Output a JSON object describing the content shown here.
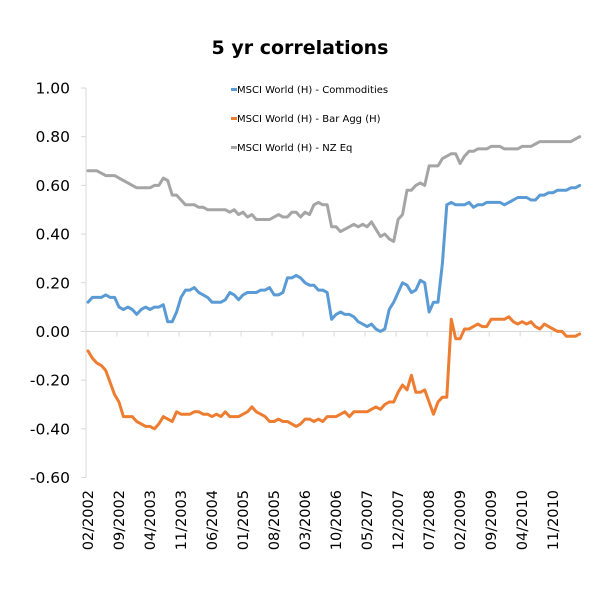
{
  "chart_data": {
    "type": "line",
    "title": "5 yr correlations",
    "xlabel": "",
    "ylabel": "",
    "ylim": [
      -0.6,
      1.0
    ],
    "y_ticks": [
      "1.00",
      "0.80",
      "0.60",
      "0.40",
      "0.20",
      "0.00",
      "-0.20",
      "-0.40",
      "-0.60"
    ],
    "y_tick_values": [
      1.0,
      0.8,
      0.6,
      0.4,
      0.2,
      0.0,
      -0.2,
      -0.4,
      -0.6
    ],
    "x_start": "02/2002",
    "x_end": "05/2011",
    "x_frequency": "monthly",
    "x_tick_labels": [
      "02/2002",
      "09/2002",
      "04/2003",
      "11/2003",
      "06/2004",
      "01/2005",
      "08/2005",
      "03/2006",
      "10/2006",
      "05/2007",
      "12/2007",
      "07/2008",
      "02/2009",
      "09/2009",
      "04/2010",
      "11/2010"
    ],
    "x_tick_interval_months": 7,
    "grid": false,
    "legend_position": "top",
    "series": [
      {
        "name": "MSCI World (H) - Commodities",
        "color": "#5B9BD5",
        "values": [
          0.12,
          0.14,
          0.14,
          0.14,
          0.15,
          0.14,
          0.14,
          0.1,
          0.09,
          0.1,
          0.09,
          0.07,
          0.09,
          0.1,
          0.09,
          0.1,
          0.1,
          0.11,
          0.04,
          0.04,
          0.08,
          0.14,
          0.17,
          0.17,
          0.18,
          0.16,
          0.15,
          0.14,
          0.12,
          0.12,
          0.12,
          0.13,
          0.16,
          0.15,
          0.13,
          0.15,
          0.16,
          0.16,
          0.16,
          0.17,
          0.17,
          0.18,
          0.15,
          0.15,
          0.16,
          0.22,
          0.22,
          0.23,
          0.22,
          0.2,
          0.19,
          0.19,
          0.17,
          0.17,
          0.16,
          0.05,
          0.07,
          0.08,
          0.07,
          0.07,
          0.06,
          0.04,
          0.03,
          0.02,
          0.03,
          0.01,
          0.0,
          0.01,
          0.09,
          0.12,
          0.16,
          0.2,
          0.19,
          0.16,
          0.17,
          0.21,
          0.2,
          0.08,
          0.12,
          0.12,
          0.28,
          0.52,
          0.53,
          0.52,
          0.52,
          0.52,
          0.53,
          0.51,
          0.52,
          0.52,
          0.53,
          0.53,
          0.53,
          0.53,
          0.52,
          0.53,
          0.54,
          0.55,
          0.55,
          0.55,
          0.54,
          0.54,
          0.56,
          0.56,
          0.57,
          0.57,
          0.58,
          0.58,
          0.58,
          0.59,
          0.59,
          0.6
        ]
      },
      {
        "name": "MSCI World (H) - Bar Agg (H)",
        "color": "#ED7D31",
        "values": [
          -0.08,
          -0.11,
          -0.13,
          -0.14,
          -0.16,
          -0.21,
          -0.26,
          -0.29,
          -0.35,
          -0.35,
          -0.35,
          -0.37,
          -0.38,
          -0.39,
          -0.39,
          -0.4,
          -0.38,
          -0.35,
          -0.36,
          -0.37,
          -0.33,
          -0.34,
          -0.34,
          -0.34,
          -0.33,
          -0.33,
          -0.34,
          -0.34,
          -0.35,
          -0.34,
          -0.35,
          -0.33,
          -0.35,
          -0.35,
          -0.35,
          -0.34,
          -0.33,
          -0.31,
          -0.33,
          -0.34,
          -0.35,
          -0.37,
          -0.37,
          -0.36,
          -0.37,
          -0.37,
          -0.38,
          -0.39,
          -0.38,
          -0.36,
          -0.36,
          -0.37,
          -0.36,
          -0.37,
          -0.35,
          -0.35,
          -0.35,
          -0.34,
          -0.33,
          -0.35,
          -0.33,
          -0.33,
          -0.33,
          -0.33,
          -0.32,
          -0.31,
          -0.32,
          -0.3,
          -0.29,
          -0.29,
          -0.25,
          -0.22,
          -0.24,
          -0.18,
          -0.25,
          -0.25,
          -0.24,
          -0.29,
          -0.34,
          -0.29,
          -0.27,
          -0.27,
          0.05,
          -0.03,
          -0.03,
          0.01,
          0.01,
          0.02,
          0.03,
          0.02,
          0.02,
          0.05,
          0.05,
          0.05,
          0.05,
          0.06,
          0.04,
          0.03,
          0.04,
          0.03,
          0.04,
          0.02,
          0.01,
          0.03,
          0.02,
          0.01,
          0.0,
          0.0,
          -0.02,
          -0.02,
          -0.02,
          -0.01
        ]
      },
      {
        "name": "MSCI World (H) - NZ Eq",
        "color": "#A5A5A5",
        "values": [
          0.66,
          0.66,
          0.66,
          0.65,
          0.64,
          0.64,
          0.64,
          0.63,
          0.62,
          0.61,
          0.6,
          0.59,
          0.59,
          0.59,
          0.59,
          0.6,
          0.6,
          0.63,
          0.62,
          0.56,
          0.56,
          0.54,
          0.52,
          0.52,
          0.52,
          0.51,
          0.51,
          0.5,
          0.5,
          0.5,
          0.5,
          0.5,
          0.49,
          0.5,
          0.48,
          0.49,
          0.47,
          0.48,
          0.46,
          0.46,
          0.46,
          0.46,
          0.47,
          0.48,
          0.47,
          0.47,
          0.49,
          0.49,
          0.47,
          0.49,
          0.48,
          0.52,
          0.53,
          0.52,
          0.52,
          0.43,
          0.43,
          0.41,
          0.42,
          0.43,
          0.44,
          0.43,
          0.44,
          0.43,
          0.45,
          0.42,
          0.39,
          0.4,
          0.38,
          0.37,
          0.46,
          0.48,
          0.58,
          0.58,
          0.6,
          0.61,
          0.6,
          0.68,
          0.68,
          0.68,
          0.71,
          0.72,
          0.73,
          0.73,
          0.69,
          0.72,
          0.74,
          0.74,
          0.75,
          0.75,
          0.75,
          0.76,
          0.76,
          0.76,
          0.75,
          0.75,
          0.75,
          0.75,
          0.76,
          0.76,
          0.76,
          0.77,
          0.78,
          0.78,
          0.78,
          0.78,
          0.78,
          0.78,
          0.78,
          0.78,
          0.79,
          0.8
        ]
      }
    ]
  }
}
